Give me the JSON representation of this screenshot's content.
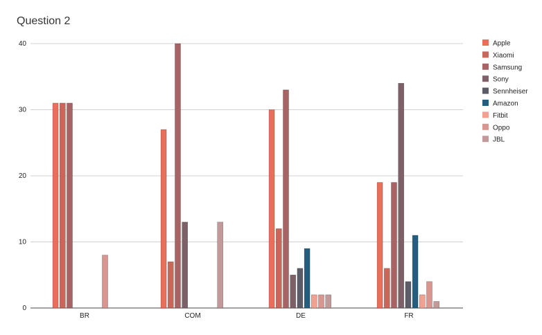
{
  "chart_data": {
    "type": "bar",
    "title": "Question 2",
    "xlabel": "",
    "ylabel": "",
    "ylim": [
      0,
      40
    ],
    "yticks": [
      0,
      10,
      20,
      30,
      40
    ],
    "grid": true,
    "legend_position": "right",
    "categories": [
      "BR",
      "COM",
      "DE",
      "FR"
    ],
    "series": [
      {
        "name": "Apple",
        "color": "#e8705a",
        "values": [
          31,
          27,
          30,
          19
        ]
      },
      {
        "name": "Xiaomi",
        "color": "#c9675a",
        "values": [
          31,
          7,
          12,
          6
        ]
      },
      {
        "name": "Samsung",
        "color": "#a86464",
        "values": [
          31,
          40,
          33,
          19
        ]
      },
      {
        "name": "Sony",
        "color": "#7d6068",
        "values": [
          0,
          13,
          5,
          34
        ]
      },
      {
        "name": "Sennheiser",
        "color": "#5c5c66",
        "values": [
          0,
          0,
          6,
          4
        ]
      },
      {
        "name": "Amazon",
        "color": "#245e7e",
        "values": [
          0,
          0,
          9,
          11
        ]
      },
      {
        "name": "Fitbit",
        "color": "#f0a190",
        "values": [
          0,
          0,
          2,
          2
        ]
      },
      {
        "name": "Oppo",
        "color": "#d99590",
        "values": [
          8,
          0,
          2,
          4
        ]
      },
      {
        "name": "JBL",
        "color": "#c29a9a",
        "values": [
          0,
          13,
          2,
          1
        ]
      }
    ]
  }
}
